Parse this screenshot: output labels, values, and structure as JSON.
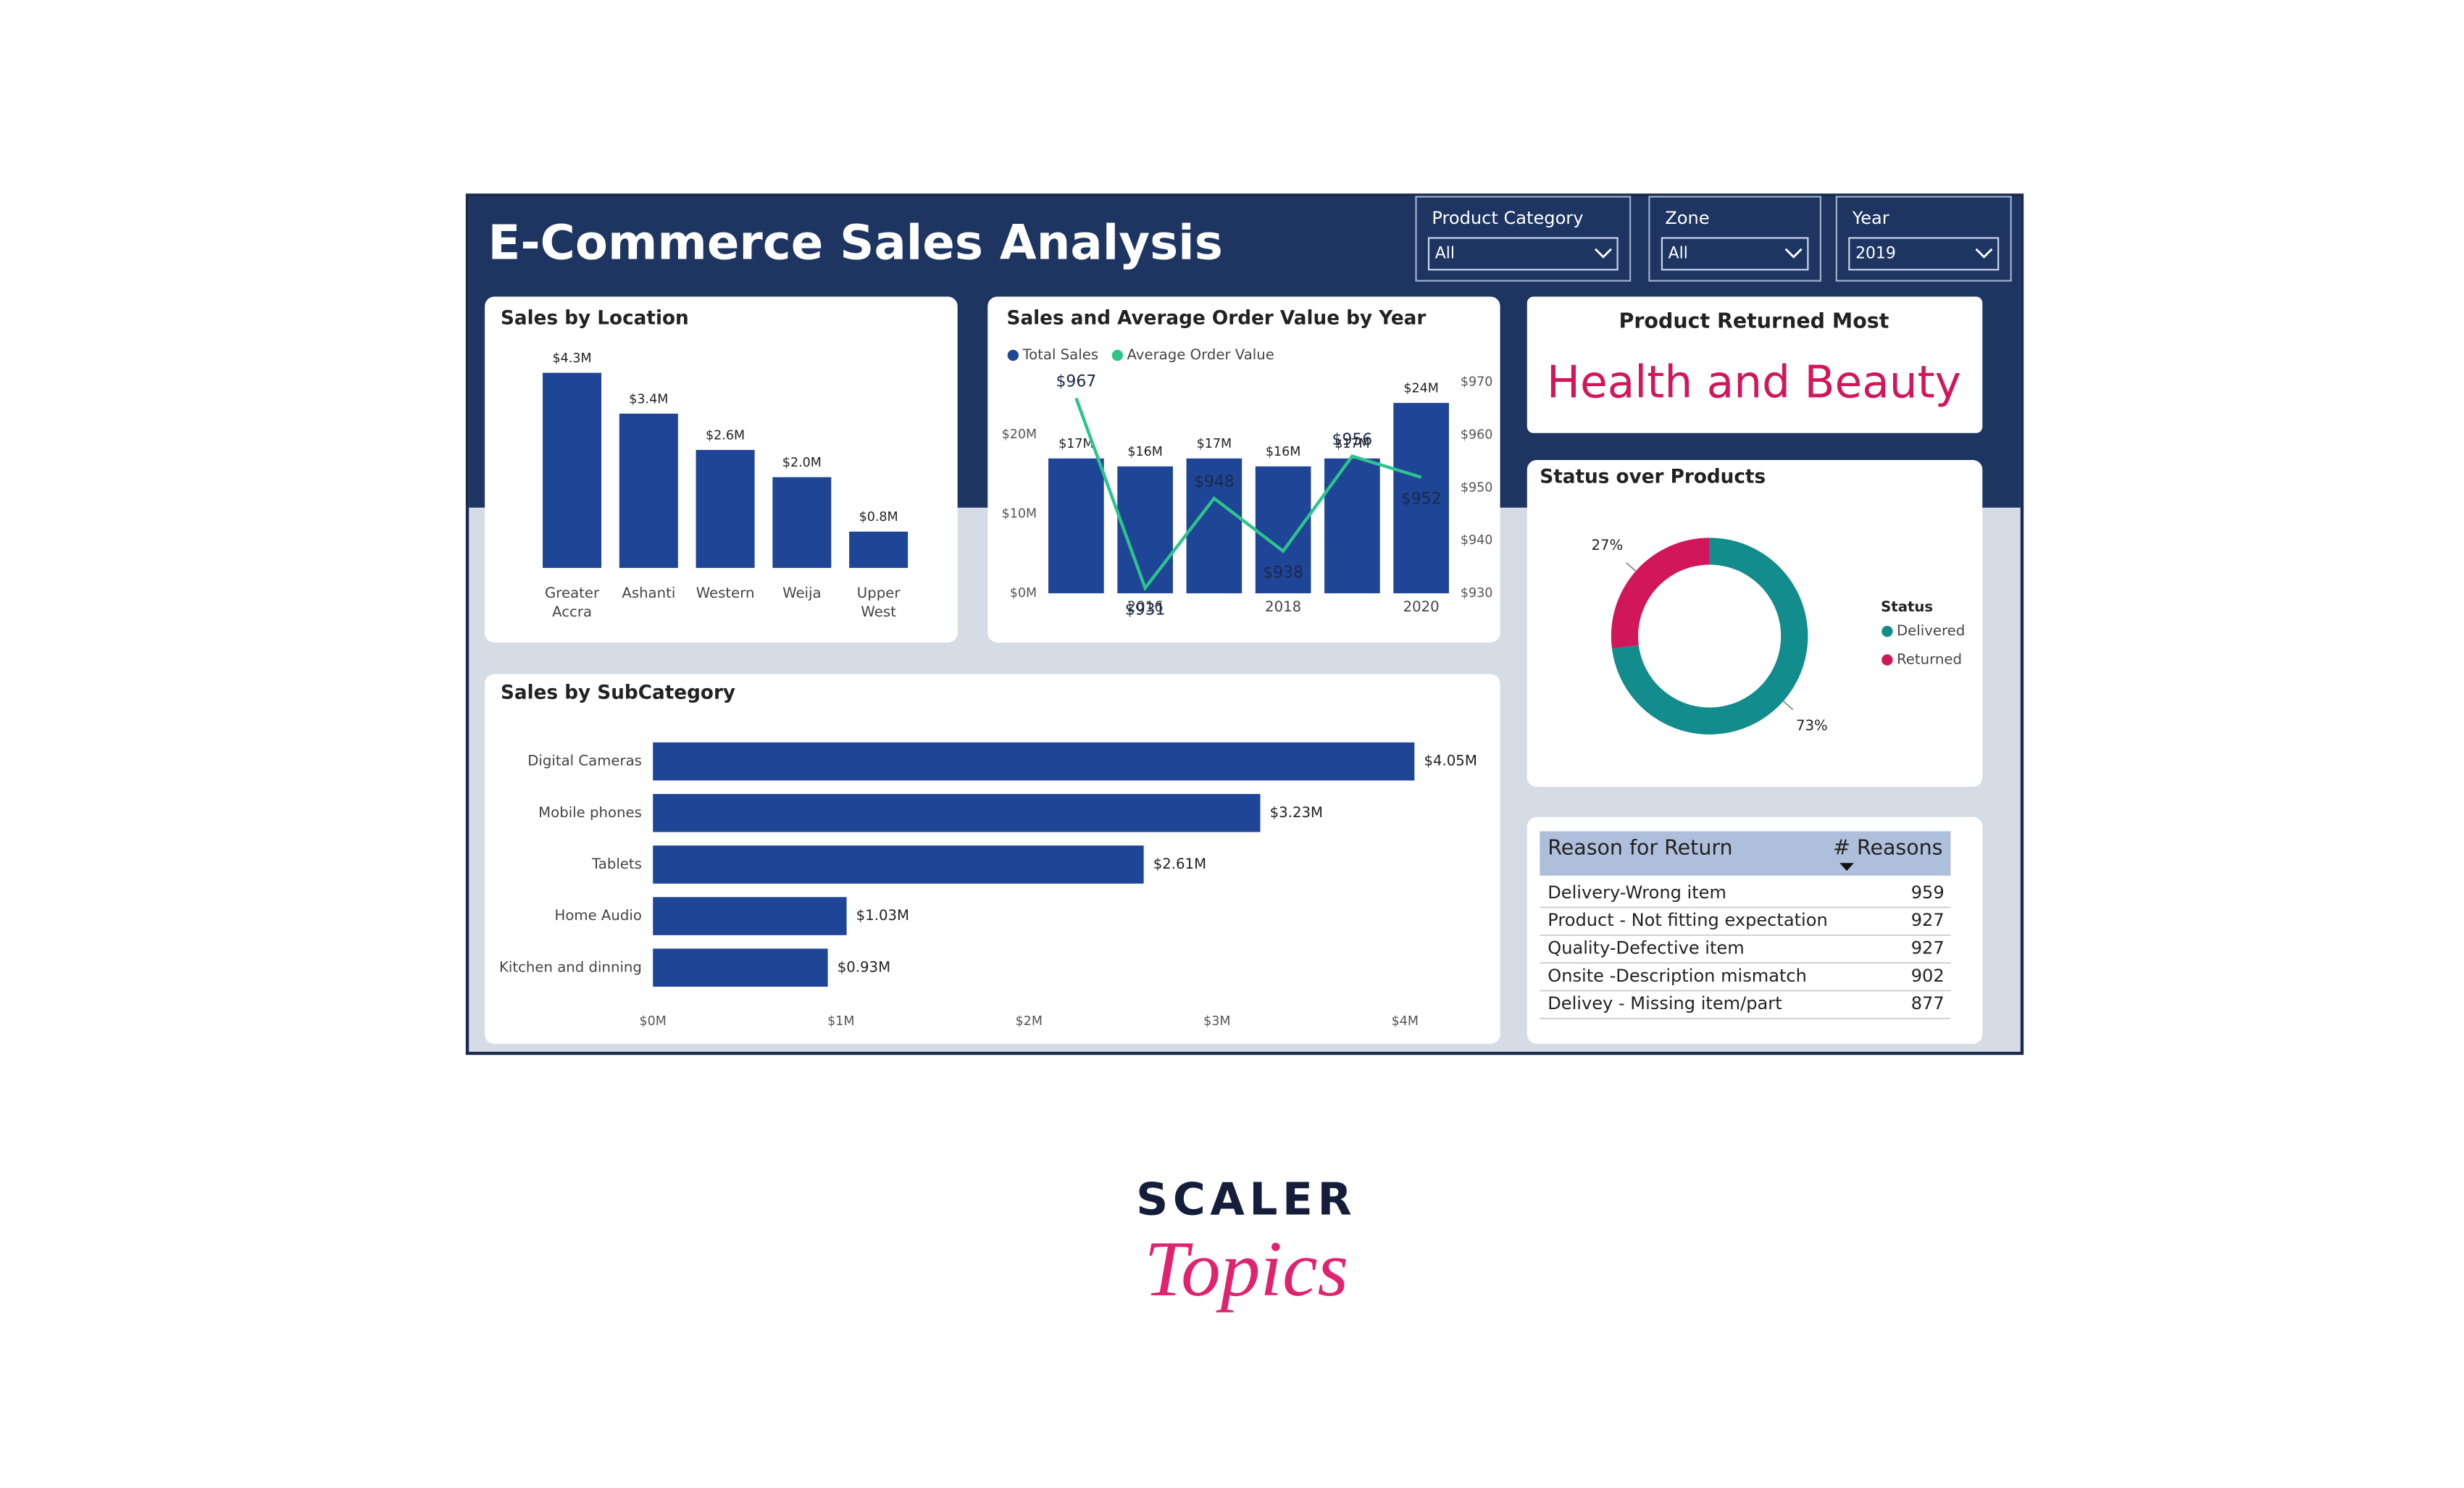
{
  "title": "E-Commerce Sales Analysis",
  "filters": [
    {
      "label": "Product Category",
      "value": "All"
    },
    {
      "label": "Zone",
      "value": "All"
    },
    {
      "label": "Year",
      "value": "2019"
    }
  ],
  "card": {
    "title": "Product Returned Most",
    "value": "Health and Beauty"
  },
  "table": {
    "headers": [
      "Reason for Return",
      "# Reasons"
    ],
    "rows": [
      [
        "Delivery-Wrong item",
        959
      ],
      [
        "Product - Not fitting expectation",
        927
      ],
      [
        "Quality-Defective item",
        927
      ],
      [
        "Onsite -Description mismatch",
        902
      ],
      [
        "Delivey - Missing item/part",
        877
      ]
    ]
  },
  "brand": {
    "name": "SCALER",
    "tagline": "Topics"
  },
  "chart_data": [
    {
      "type": "bar",
      "title": "Sales by Location",
      "categories": [
        "Greater Accra",
        "Ashanti",
        "Western",
        "Weija",
        "Upper West"
      ],
      "values": [
        4.3,
        3.4,
        2.6,
        2.0,
        0.8
      ],
      "value_labels": [
        "$4.3M",
        "$3.4M",
        "$2.6M",
        "$2.0M",
        "$0.8M"
      ],
      "color": "#1f4597"
    },
    {
      "type": "combo",
      "title": "Sales and Average Order Value by Year",
      "x": [
        2015,
        2016,
        2017,
        2018,
        2019,
        2020
      ],
      "xlim": [
        2014.5,
        2020.5
      ],
      "xticks": [
        2016,
        2018,
        2020
      ],
      "ylim": [
        0,
        26.6
      ],
      "yticks": [
        {
          "value": 0,
          "label": "$0M"
        },
        {
          "value": 10,
          "label": "$10M"
        },
        {
          "value": 20,
          "label": "$20M"
        }
      ],
      "y2lim": [
        930,
        970
      ],
      "y2ticks": [
        {
          "value": 930,
          "label": "$930"
        },
        {
          "value": 940,
          "label": "$940"
        },
        {
          "value": 950,
          "label": "$950"
        },
        {
          "value": 960,
          "label": "$960"
        },
        {
          "value": 970,
          "label": "$970"
        }
      ],
      "series": [
        {
          "name": "Total Sales",
          "color": "#1f4597",
          "values": [
            17,
            16,
            17,
            16,
            17,
            24
          ],
          "value_labels": [
            "$17M",
            "$16M",
            "$17M",
            "$16M",
            "$17M",
            "$24M"
          ]
        },
        {
          "name": "Average Order Value",
          "color": "#2bc48a",
          "axis": "y2",
          "values": [
            967,
            931,
            948,
            938,
            956,
            952
          ],
          "value_labels": [
            "$967",
            "$931",
            "$948",
            "$938",
            "$956",
            "$952"
          ]
        }
      ]
    },
    {
      "type": "hbar",
      "title": "Sales by SubCategory",
      "categories": [
        "Digital Cameras",
        "Mobile phones",
        "Tablets",
        "Home Audio",
        "Kitchen and dinning"
      ],
      "values": [
        4.05,
        3.23,
        2.61,
        1.03,
        0.93
      ],
      "value_labels": [
        "$4.05M",
        "$3.23M",
        "$2.61M",
        "$1.03M",
        "$0.93M"
      ],
      "color": "#1f4597",
      "xlim": [
        0,
        4.05
      ],
      "xticks": [
        {
          "value": 0,
          "label": "$0M"
        },
        {
          "value": 1,
          "label": "$1M"
        },
        {
          "value": 2,
          "label": "$2M"
        },
        {
          "value": 3,
          "label": "$3M"
        },
        {
          "value": 4,
          "label": "$4M"
        }
      ]
    },
    {
      "type": "donut",
      "title": "Status over Products",
      "legend_title": "Status",
      "categories": [
        "Delivered",
        "Returned"
      ],
      "values": [
        73,
        27
      ],
      "value_labels": [
        "73%",
        "27%"
      ],
      "colors": [
        "#128c8c",
        "#d2165a"
      ]
    }
  ]
}
